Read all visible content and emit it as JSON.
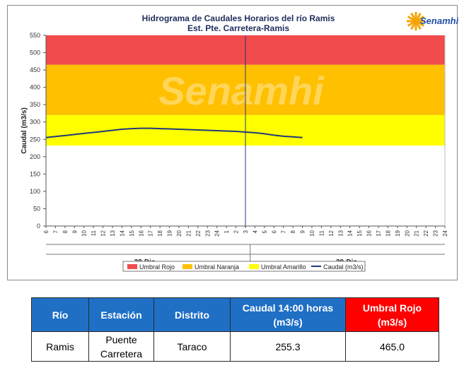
{
  "chart_data": {
    "type": "line",
    "title": "Hidrograma de Caudales Horarios del río Ramis",
    "subtitle": "Est. Pte. Carretera-Ramis",
    "ylabel": "Caudal  (m3/s)",
    "ylim": [
      0,
      550
    ],
    "yticks": [
      0,
      50,
      100,
      150,
      200,
      250,
      300,
      350,
      400,
      450,
      500,
      550
    ],
    "xticks": [
      "6",
      "7",
      "8",
      "9",
      "10",
      "11",
      "12",
      "13",
      "14",
      "15",
      "16",
      "17",
      "18",
      "19",
      "20",
      "21",
      "22",
      "23",
      "24",
      "1",
      "2",
      "3",
      "4",
      "5",
      "6",
      "7",
      "8",
      "9",
      "10",
      "11",
      "12",
      "13",
      "14",
      "15",
      "16",
      "17",
      "18",
      "19",
      "20",
      "21",
      "22",
      "23",
      "24"
    ],
    "day_groups": [
      {
        "label": "28-Dic.",
        "ticks": 22
      },
      {
        "label": "29-Dic.",
        "ticks": 21
      }
    ],
    "grid": false,
    "legend_position": "bottom",
    "bands": [
      {
        "name": "Umbral Rojo",
        "from": 465,
        "to": 550,
        "color": "#f24b4b"
      },
      {
        "name": "Umbral Naranja",
        "from": 320,
        "to": 465,
        "color": "#ffc000"
      },
      {
        "name": "Umbral Amarillo",
        "from": 232,
        "to": 320,
        "color": "#ffff00"
      }
    ],
    "series": [
      {
        "name": "Caudal (m3/s)",
        "color": "#1f3a7a",
        "y": [
          255,
          258,
          261,
          264,
          267,
          270,
          273,
          276,
          279,
          281,
          282,
          282,
          281,
          280,
          279,
          278,
          277,
          276,
          275,
          274,
          273,
          271,
          269,
          266,
          262,
          259,
          257,
          255.3
        ]
      }
    ],
    "marker_index": 21,
    "watermark": "Senamhi"
  },
  "logo": {
    "text": "Senamhi"
  },
  "table": {
    "headers": [
      "Río",
      "Estación",
      "Distrito",
      "Caudal  14:00 horas (m3/s)",
      "Umbral Rojo (m3/s)"
    ],
    "row": [
      "Ramis",
      "Puente Carretera",
      "Taraco",
      "255.3",
      "465.0"
    ]
  },
  "colors": {
    "header_blue": "#1f6fc5",
    "header_red": "#ff0000"
  }
}
